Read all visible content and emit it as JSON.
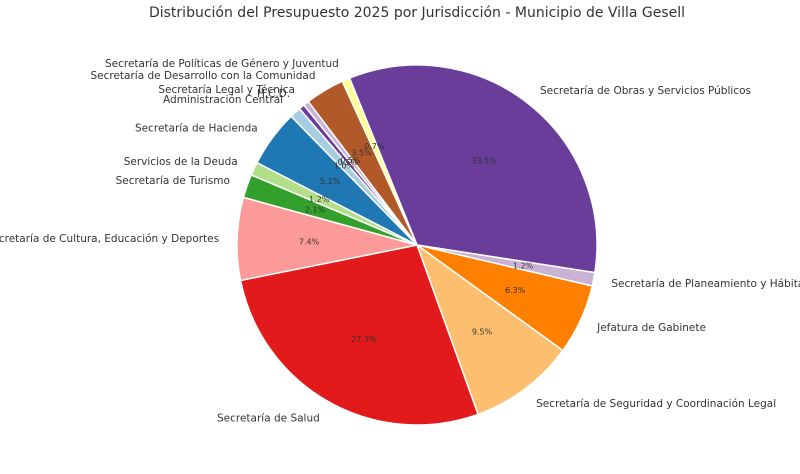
{
  "chart_data": {
    "type": "pie",
    "title": "Distribución del Presupuesto 2025 por Jurisdicción - Municipio de Villa Gesell",
    "slices": [
      {
        "label": "Secretaría de Obras y Servicios Públicos",
        "value": 33.5,
        "pct_label": "33.5%",
        "color": "#6a3d9a"
      },
      {
        "label": "Secretaría de Planeamiento y Hábitat",
        "value": 1.2,
        "pct_label": "1.2%",
        "color": "#cab2d6"
      },
      {
        "label": "Jefatura de Gabinete",
        "value": 6.3,
        "pct_label": "6.3%",
        "color": "#ff7f00"
      },
      {
        "label": "Secretaría de Seguridad y Coordinación Legal",
        "value": 9.5,
        "pct_label": "9.5%",
        "color": "#fdbf6f"
      },
      {
        "label": "Secretaría de Salud",
        "value": 27.3,
        "pct_label": "27.3%",
        "color": "#e31a1c"
      },
      {
        "label": "Secretaría de Cultura, Educación y Deportes",
        "value": 7.4,
        "pct_label": "7.4%",
        "color": "#fb9a99"
      },
      {
        "label": "Secretaría de Turismo",
        "value": 2.1,
        "pct_label": "2.1%",
        "color": "#33a02c"
      },
      {
        "label": "Servicios de la Deuda",
        "value": 1.2,
        "pct_label": "1.2%",
        "color": "#b2df8a"
      },
      {
        "label": "Secretaría de Hacienda",
        "value": 5.1,
        "pct_label": "5.1%",
        "color": "#1f78b4"
      },
      {
        "label": "Administración Central",
        "value": 1.0,
        "pct_label": "1.0%",
        "color": "#a6cee3"
      },
      {
        "label": "H.C.D.",
        "value": 0.5,
        "pct_label": "0.5%",
        "color": "#6a3d9a"
      },
      {
        "label": "Secretaría Legal y Técnica",
        "value": 0.5,
        "pct_label": "0.5%",
        "color": "#cab2d6"
      },
      {
        "label": "Secretaría de Desarrollo con la Comunidad",
        "value": 3.5,
        "pct_label": "3.5%",
        "color": "#b15928"
      },
      {
        "label": "Secretaría de Políticas de Género y Juventud",
        "value": 0.7,
        "pct_label": "0.7%",
        "color": "#ffff99"
      }
    ]
  }
}
